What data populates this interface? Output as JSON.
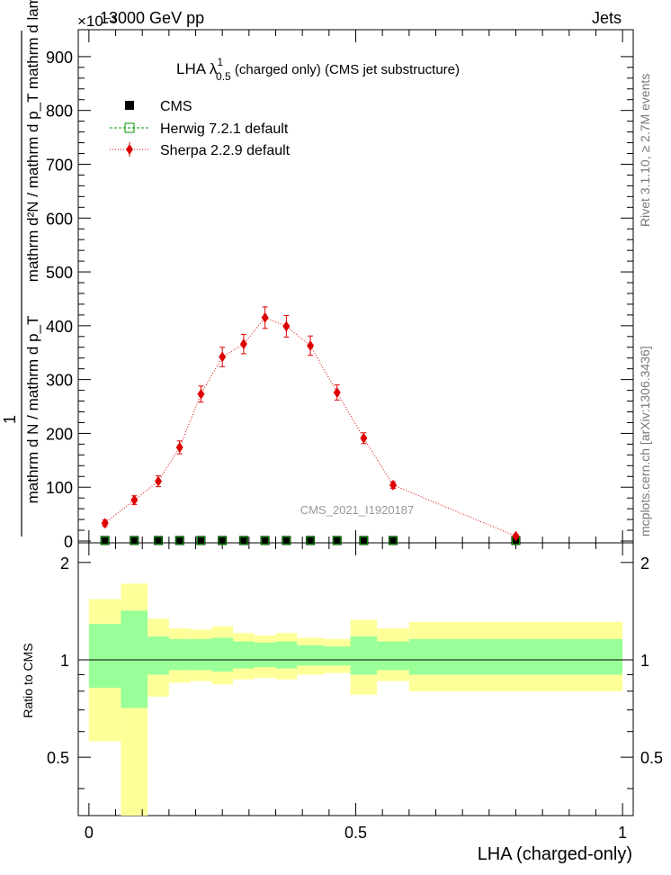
{
  "header": {
    "energy": "13000 GeV pp",
    "process": "Jets",
    "exponent": "×10⁻³"
  },
  "side_labels": {
    "rivet": "Rivet 3.1.10, ≥ 2.7M events",
    "mcplots": "mcplots.cern.ch [arXiv:1306.3436]"
  },
  "chart_data": [
    {
      "type": "scatter",
      "title": "LHA λ¹₀.₅ (charged only) (CMS jet substructure)",
      "title_parts": {
        "main": "LHA λ",
        "sup": "1",
        "sub": "0.5",
        "rest": " (charged only) (CMS jet substructure)"
      },
      "ylabel_parts": {
        "one": "1",
        "den": "mathrm d N / mathrm d p_T",
        "num": "mathrm d²N / mathrm d p_T mathrm d lambda"
      },
      "watermark": "CMS_2021_I1920187",
      "xlim": [
        -0.02,
        1.02
      ],
      "ylim": [
        0,
        950
      ],
      "yticks": [
        0,
        100,
        200,
        300,
        400,
        500,
        600,
        700,
        800,
        900
      ],
      "legend_placement": "top-left",
      "legend": [
        {
          "name": "CMS",
          "marker": "square-filled",
          "color": "#000000"
        },
        {
          "name": "Herwig 7.2.1 default",
          "marker": "square-open",
          "color": "#009900"
        },
        {
          "name": "Sherpa 2.2.9 default",
          "marker": "diamond",
          "color": "#dd0000"
        }
      ],
      "x_bins": [
        [
          0,
          0.06
        ],
        [
          0.06,
          0.11
        ],
        [
          0.11,
          0.15
        ],
        [
          0.15,
          0.19
        ],
        [
          0.19,
          0.23
        ],
        [
          0.23,
          0.27
        ],
        [
          0.27,
          0.31
        ],
        [
          0.31,
          0.35
        ],
        [
          0.35,
          0.39
        ],
        [
          0.39,
          0.44
        ],
        [
          0.44,
          0.49
        ],
        [
          0.49,
          0.54
        ],
        [
          0.54,
          0.6
        ],
        [
          0.6,
          1.0
        ]
      ],
      "series": [
        {
          "name": "CMS",
          "x": [
            0.03,
            0.085,
            0.13,
            0.17,
            0.21,
            0.25,
            0.29,
            0.33,
            0.37,
            0.415,
            0.465,
            0.515,
            0.57,
            0.8
          ],
          "y": [
            1,
            1,
            1,
            1,
            1,
            1,
            1,
            1,
            1,
            1,
            1,
            1,
            1,
            1
          ]
        },
        {
          "name": "Herwig 7.2.1 default",
          "x": [
            0.03,
            0.085,
            0.13,
            0.17,
            0.21,
            0.25,
            0.29,
            0.33,
            0.37,
            0.415,
            0.465,
            0.515,
            0.57,
            0.8
          ],
          "y": [
            1,
            1,
            1,
            1,
            1,
            1,
            1,
            1,
            1,
            1,
            1,
            1,
            1,
            1
          ]
        },
        {
          "name": "Sherpa 2.2.9 default",
          "x": [
            0.03,
            0.085,
            0.13,
            0.17,
            0.21,
            0.25,
            0.29,
            0.33,
            0.37,
            0.415,
            0.465,
            0.515,
            0.57,
            0.8
          ],
          "y": [
            33,
            76,
            111,
            174,
            273,
            342,
            366,
            415,
            399,
            363,
            276,
            191,
            104,
            9
          ],
          "err": [
            6,
            8,
            10,
            12,
            15,
            18,
            18,
            20,
            20,
            18,
            14,
            10,
            6,
            3
          ]
        }
      ]
    },
    {
      "type": "area",
      "ylabel": "Ratio to CMS",
      "xlabel": "LHA (charged-only)",
      "xlim": [
        -0.02,
        1.02
      ],
      "ylim": [
        0.33,
        2.3
      ],
      "yticks": [
        0.5,
        1,
        2
      ],
      "xticks": [
        0,
        0.5,
        1
      ],
      "bins": [
        [
          0,
          0.06
        ],
        [
          0.06,
          0.11
        ],
        [
          0.11,
          0.15
        ],
        [
          0.15,
          0.19
        ],
        [
          0.19,
          0.23
        ],
        [
          0.23,
          0.27
        ],
        [
          0.27,
          0.31
        ],
        [
          0.31,
          0.35
        ],
        [
          0.35,
          0.39
        ],
        [
          0.39,
          0.44
        ],
        [
          0.44,
          0.49
        ],
        [
          0.49,
          0.54
        ],
        [
          0.54,
          0.6
        ],
        [
          0.6,
          1.0
        ]
      ],
      "bands": [
        {
          "name": "yellow",
          "color": "#ffff99",
          "low": [
            0.56,
            0.33,
            0.77,
            0.85,
            0.86,
            0.84,
            0.87,
            0.88,
            0.87,
            0.9,
            0.91,
            0.78,
            0.86,
            0.8
          ],
          "high": [
            1.54,
            1.72,
            1.34,
            1.25,
            1.24,
            1.27,
            1.21,
            1.19,
            1.21,
            1.17,
            1.16,
            1.33,
            1.25,
            1.31
          ]
        },
        {
          "name": "green",
          "color": "#99ff99",
          "low": [
            0.82,
            0.71,
            0.9,
            0.93,
            0.93,
            0.92,
            0.94,
            0.95,
            0.94,
            0.96,
            0.96,
            0.9,
            0.93,
            0.9
          ],
          "high": [
            1.29,
            1.42,
            1.18,
            1.16,
            1.16,
            1.17,
            1.14,
            1.13,
            1.14,
            1.11,
            1.1,
            1.18,
            1.14,
            1.16
          ]
        }
      ],
      "reference": 1
    }
  ]
}
